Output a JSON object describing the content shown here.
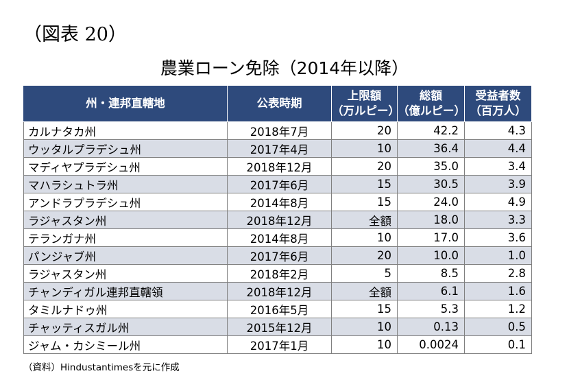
{
  "figure_label": "（図表 20）",
  "title": "農業ローン免除（2014年以降）",
  "table": {
    "headers": [
      {
        "line1": "州・連邦直轄地",
        "line2": ""
      },
      {
        "line1": "公表時期",
        "line2": ""
      },
      {
        "line1": "上限額",
        "line2": "（万ルピー）"
      },
      {
        "line1": "総額",
        "line2": "（億ルピー）"
      },
      {
        "line1": "受益者数",
        "line2": "（百万人）"
      }
    ],
    "rows": [
      {
        "state": "カルナタカ州",
        "date": "2018年7月",
        "cap": "20",
        "total": "42.2",
        "beneficiaries": "4.3"
      },
      {
        "state": "ウッタルプラデシュ州",
        "date": "2017年4月",
        "cap": "10",
        "total": "36.4",
        "beneficiaries": "4.4"
      },
      {
        "state": "マディヤプラデシュ州",
        "date": "2018年12月",
        "cap": "20",
        "total": "35.0",
        "beneficiaries": "3.4"
      },
      {
        "state": "マハラシュトラ州",
        "date": "2017年6月",
        "cap": "15",
        "total": "30.5",
        "beneficiaries": "3.9"
      },
      {
        "state": "アンドラプラデシュ州",
        "date": "2014年8月",
        "cap": "15",
        "total": "24.0",
        "beneficiaries": "4.9"
      },
      {
        "state": "ラジャスタン州",
        "date": "2018年12月",
        "cap": "全額",
        "total": "18.0",
        "beneficiaries": "3.3"
      },
      {
        "state": "テランガナ州",
        "date": "2014年8月",
        "cap": "10",
        "total": "17.0",
        "beneficiaries": "3.6"
      },
      {
        "state": "パンジャブ州",
        "date": "2017年6月",
        "cap": "20",
        "total": "10.0",
        "beneficiaries": "1.0"
      },
      {
        "state": "ラジャスタン州",
        "date": "2018年2月",
        "cap": "5",
        "total": "8.5",
        "beneficiaries": "2.8"
      },
      {
        "state": "チャンディガル連邦直轄領",
        "date": "2018年12月",
        "cap": "全額",
        "total": "6.1",
        "beneficiaries": "1.6"
      },
      {
        "state": "タミルナドゥ州",
        "date": "2016年5月",
        "cap": "15",
        "total": "5.3",
        "beneficiaries": "1.2"
      },
      {
        "state": "チャッティスガル州",
        "date": "2015年12月",
        "cap": "10",
        "total": "0.13",
        "beneficiaries": "0.5"
      },
      {
        "state": "ジャム・カシミール州",
        "date": "2017年1月",
        "cap": "10",
        "total": "0.0024",
        "beneficiaries": "0.1"
      }
    ]
  },
  "source_note": "（資料）Hindustantimesを元に作成",
  "colors": {
    "header_bg": "#2e4a7c",
    "stripe": "#d9dde6"
  }
}
